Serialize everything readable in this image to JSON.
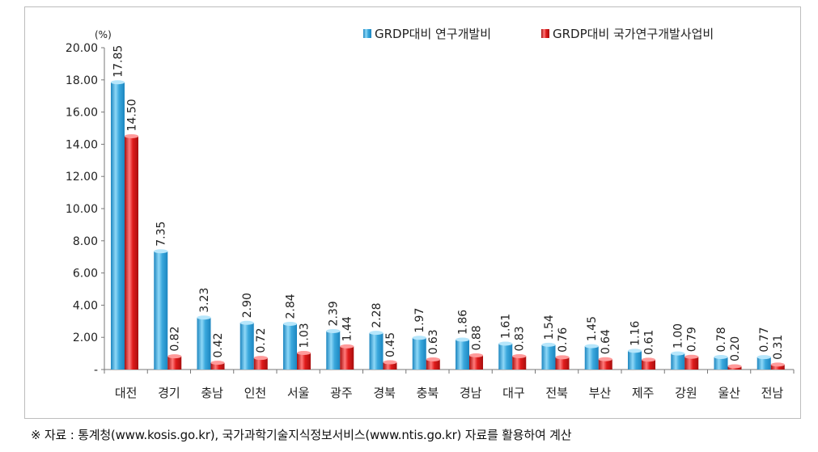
{
  "chart_data": {
    "type": "bar",
    "title": "",
    "unit_label": "(%)",
    "ylim": [
      0,
      20
    ],
    "yticks": [
      "-",
      "2.00",
      "4.00",
      "6.00",
      "8.00",
      "10.00",
      "12.00",
      "14.00",
      "16.00",
      "18.00",
      "20.00"
    ],
    "ytick_values": [
      0,
      2,
      4,
      6,
      8,
      10,
      12,
      14,
      16,
      18,
      20
    ],
    "categories": [
      "대전",
      "경기",
      "충남",
      "인천",
      "서울",
      "광주",
      "경북",
      "충북",
      "경남",
      "대구",
      "전북",
      "부산",
      "제주",
      "강원",
      "울산",
      "전남"
    ],
    "series": [
      {
        "name": "GRDP대비 연구개발비",
        "color": "#3aa8dd",
        "values": [
          17.85,
          7.35,
          3.23,
          2.9,
          2.84,
          2.39,
          2.28,
          1.97,
          1.86,
          1.61,
          1.54,
          1.45,
          1.16,
          1.0,
          0.78,
          0.77
        ],
        "labels": [
          "17.85",
          "7.35",
          "3.23",
          "2.90",
          "2.84",
          "2.39",
          "2.28",
          "1.97",
          "1.86",
          "1.61",
          "1.54",
          "1.45",
          "1.16",
          "1.00",
          "0.78",
          "0.77"
        ]
      },
      {
        "name": "GRDP대비 국가연구개발사업비",
        "color": "#e01b1b",
        "values": [
          14.5,
          0.82,
          0.42,
          0.72,
          1.03,
          1.44,
          0.45,
          0.63,
          0.88,
          0.83,
          0.76,
          0.64,
          0.61,
          0.79,
          0.2,
          0.31
        ],
        "labels": [
          "14.50",
          "0.82",
          "0.42",
          "0.72",
          "1.03",
          "1.44",
          "0.45",
          "0.63",
          "0.88",
          "0.83",
          "0.76",
          "0.64",
          "0.61",
          "0.79",
          "0.20",
          "0.31"
        ]
      }
    ],
    "legend_position": "top-right",
    "grid": false
  },
  "source_note": "※ 자료 : 통계청(www.kosis.go.kr), 국가과학기술지식정보서비스(www.ntis.go.kr) 자료를 활용하여 계산"
}
